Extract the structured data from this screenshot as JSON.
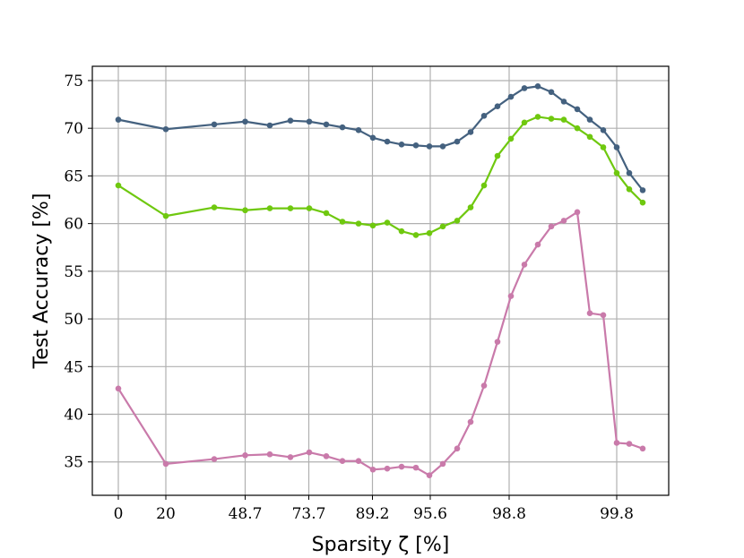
{
  "chart_data": {
    "type": "line",
    "xlabel": "Sparsity ζ [%]",
    "ylabel": "Test Accuracy [%]",
    "x_ticks": [
      "0",
      "20",
      "48.7",
      "73.7",
      "89.2",
      "95.6",
      "98.8",
      "99.8"
    ],
    "y_ticks": [
      "35",
      "40",
      "45",
      "50",
      "55",
      "60",
      "65",
      "70",
      "75"
    ],
    "ylim": [
      31.5,
      76.5
    ],
    "grid": true,
    "x_positions": [
      0,
      1,
      1.55,
      2,
      2.3,
      2.65,
      2.95,
      3.25,
      3.5,
      3.75,
      4,
      4.2,
      4.4,
      4.6,
      4.8,
      5,
      5.2,
      5.4,
      5.6,
      5.8,
      6,
      6.2,
      6.4,
      6.6,
      6.85,
      7.1,
      7.35,
      7.6,
      7.85,
      8.1,
      8.35,
      8.6
    ],
    "series": [
      {
        "color": "#44617f",
        "values": [
          70.9,
          69.9,
          70.4,
          70.7,
          70.3,
          70.8,
          70.7,
          70.4,
          70.1,
          69.8,
          69.0,
          68.6,
          68.3,
          68.2,
          68.1,
          68.1,
          68.6,
          69.6,
          71.3,
          72.3,
          73.3,
          74.2,
          74.4,
          73.8,
          72.8,
          72.0,
          70.9,
          69.8,
          68.0,
          65.3,
          63.5,
          null
        ]
      },
      {
        "color": "#6fc80f",
        "values": [
          64.0,
          60.8,
          61.7,
          61.4,
          61.6,
          61.6,
          61.6,
          61.1,
          60.2,
          60.0,
          59.8,
          60.1,
          59.2,
          58.8,
          59.0,
          59.7,
          60.3,
          61.7,
          64.0,
          67.1,
          68.9,
          70.6,
          71.2,
          71.0,
          70.9,
          70.0,
          69.1,
          68.0,
          65.3,
          63.6,
          62.2,
          null
        ]
      },
      {
        "color": "#c97aaa",
        "values": [
          42.7,
          34.8,
          35.3,
          35.7,
          35.8,
          35.5,
          36.0,
          35.6,
          35.1,
          35.1,
          34.2,
          34.3,
          34.5,
          34.4,
          33.6,
          34.8,
          36.4,
          39.2,
          43.0,
          47.6,
          52.4,
          55.7,
          57.8,
          59.7,
          60.3,
          61.2,
          50.6,
          50.4,
          37.0,
          36.9,
          36.4,
          null
        ]
      }
    ]
  }
}
